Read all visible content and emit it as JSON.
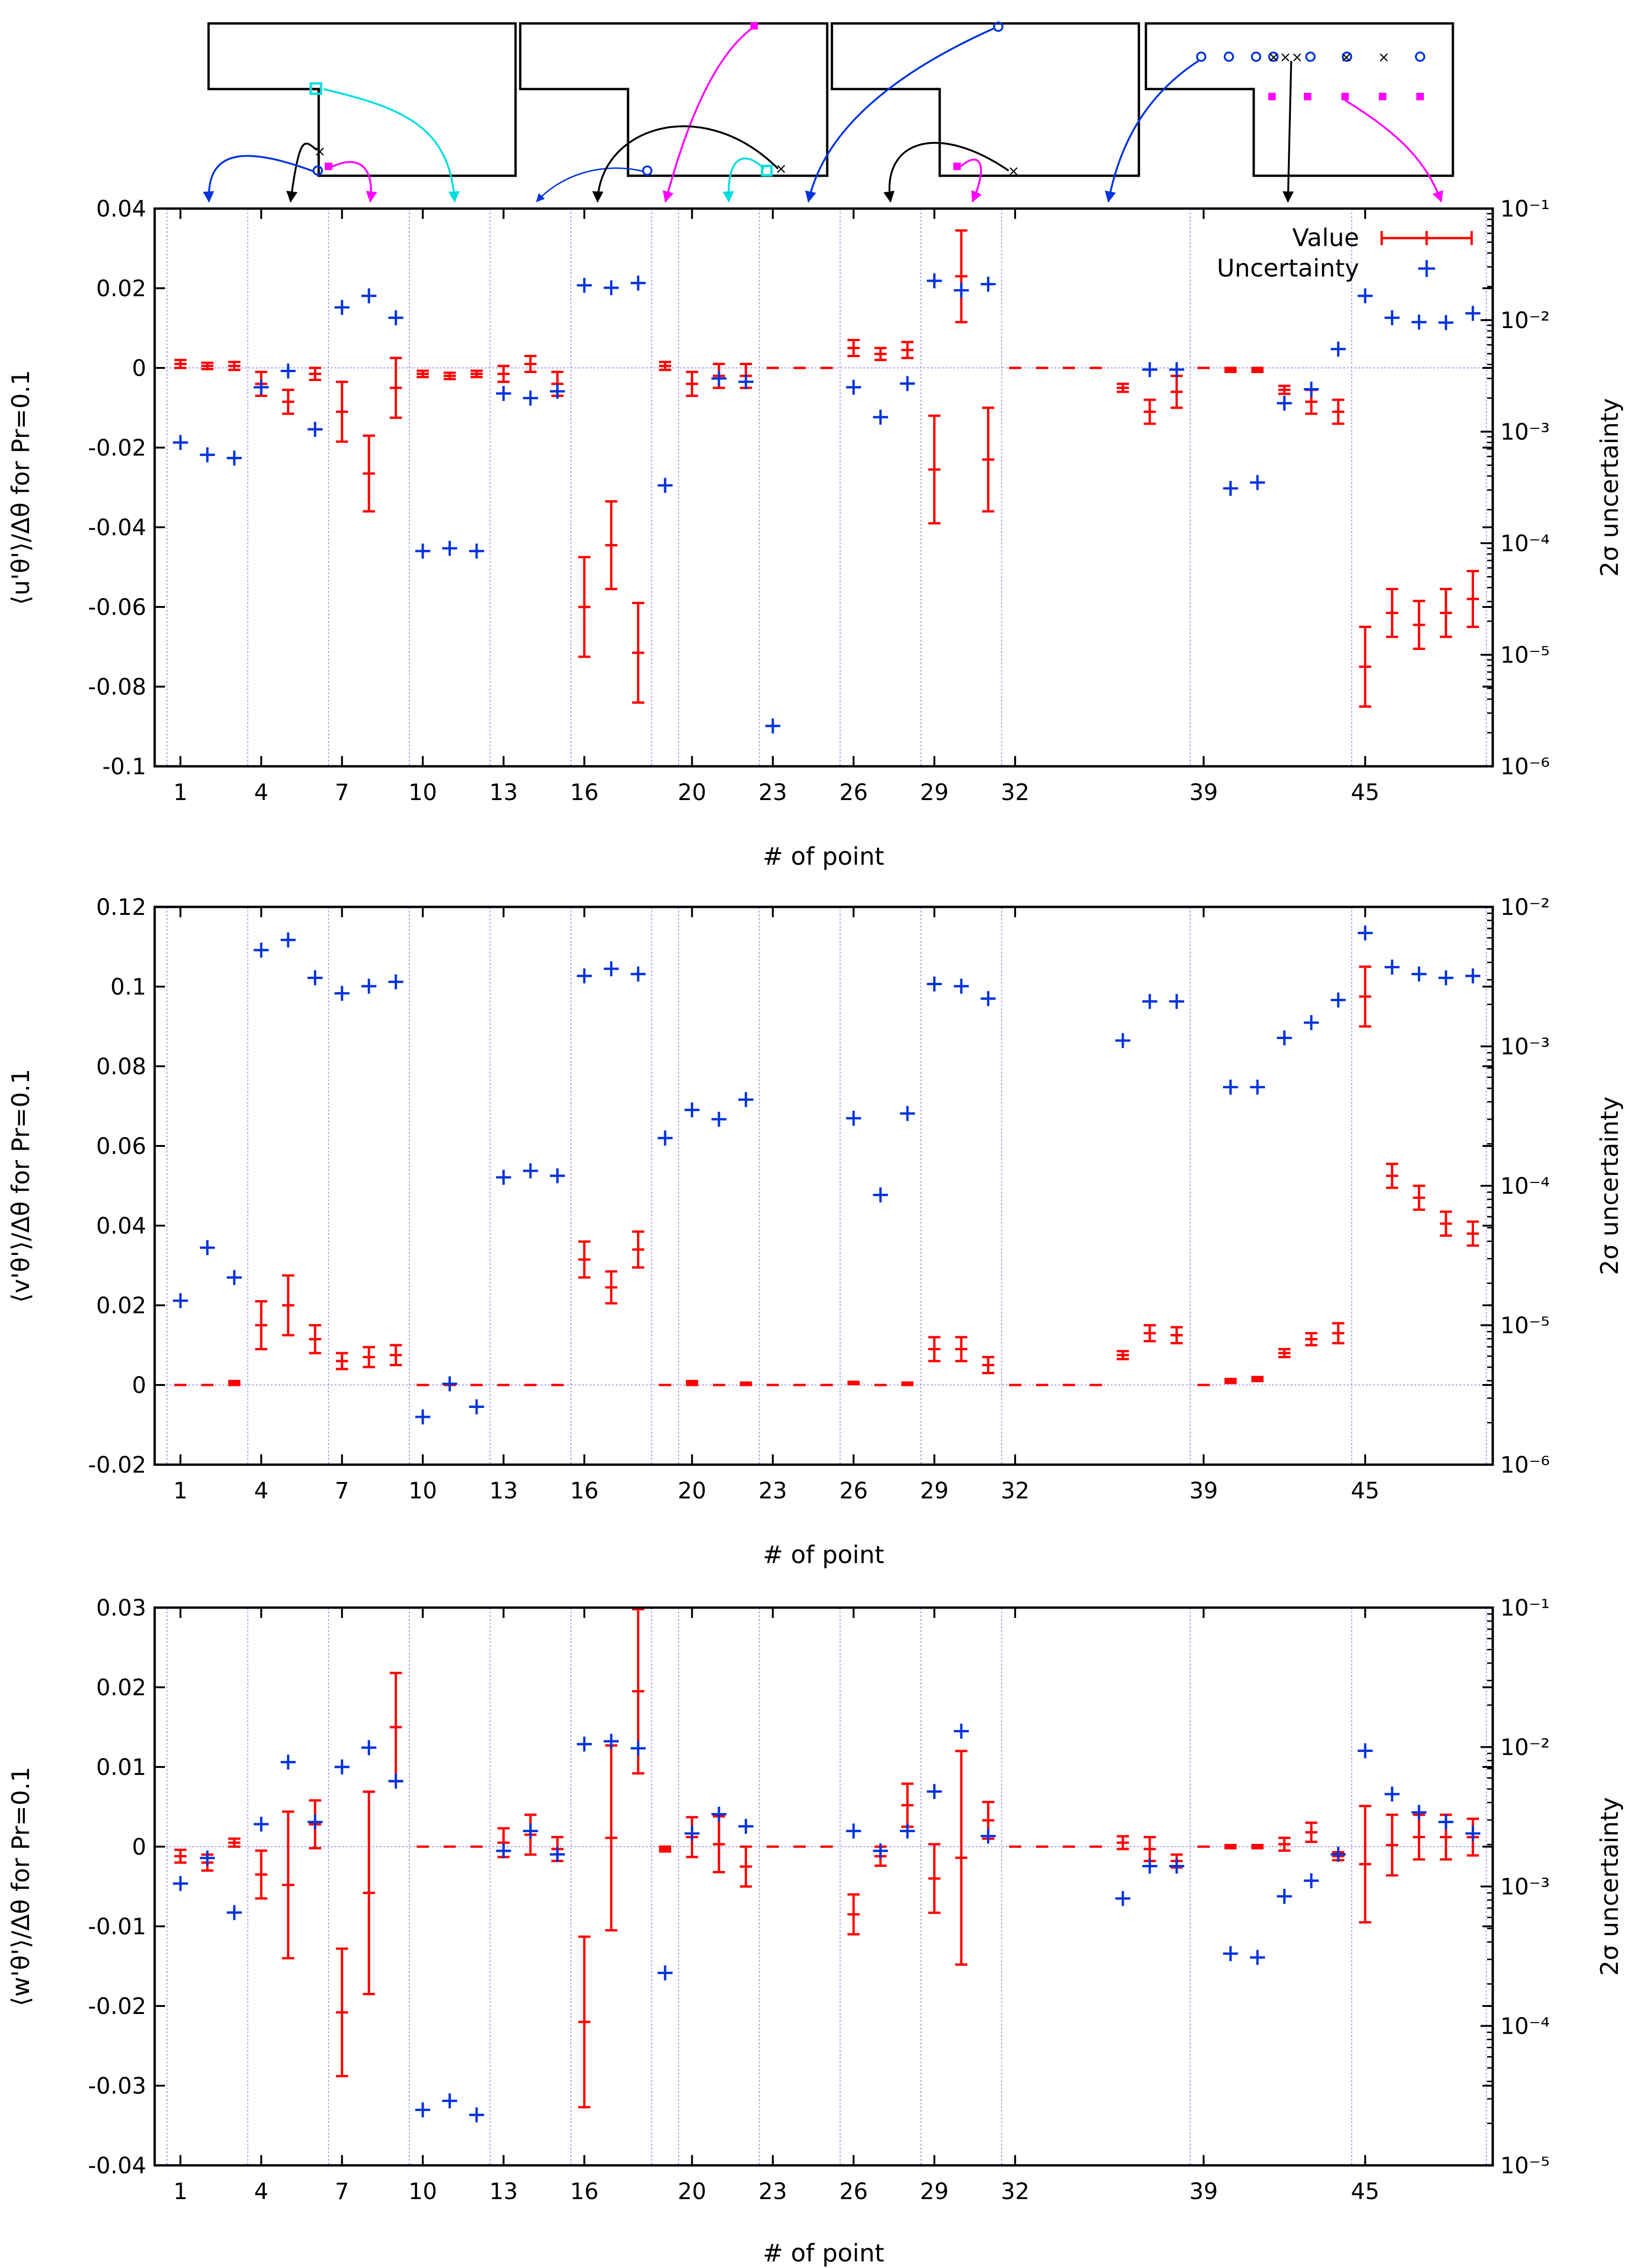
{
  "figure": {
    "x_axis_label": "# of point",
    "right_axis_label": "2σ uncertainty",
    "x_tick_labels": [
      "1",
      "4",
      "7",
      "10",
      "13",
      "16",
      "20",
      "23",
      "26",
      "29",
      "32",
      "39",
      "45"
    ],
    "legend": {
      "value_label": "Value",
      "uncertainty_label": "Uncertainty"
    },
    "colors": {
      "value": "#ff0000",
      "uncertainty": "#0033dd",
      "divider": "#9999ee",
      "cyan": "#00dddd",
      "magenta": "#ff00ff",
      "black": "#000000"
    }
  },
  "chart_data": [
    {
      "type": "scatter",
      "title": "",
      "xlabel": "# of point",
      "ylabel": "⟨u'θ'⟩/Δθ for Pr=0.1",
      "y2label": "2σ uncertainty",
      "ylim": [
        -0.1,
        0.04
      ],
      "yticks": [
        0.04,
        0.02,
        0,
        -0.02,
        -0.04,
        -0.06,
        -0.08,
        -0.1
      ],
      "ytick_labels": [
        "0.04",
        "0.02",
        "0",
        "-0.02",
        "-0.04",
        "-0.06",
        "-0.08",
        "-0.1"
      ],
      "y2_log_range": [
        -6,
        -1
      ],
      "y2_ticks": [
        "10⁻¹",
        "10⁻²",
        "10⁻³",
        "10⁻⁴",
        "10⁻⁵",
        "10⁻⁶"
      ],
      "value_series": [
        [
          1,
          0.001,
          0.001
        ],
        [
          2,
          0.0005,
          0.0008
        ],
        [
          3,
          0.0005,
          0.001
        ],
        [
          4,
          -0.004,
          0.003
        ],
        [
          5,
          -0.0085,
          0.003
        ],
        [
          6,
          -0.0015,
          0.0015
        ],
        [
          7,
          -0.011,
          0.0075
        ],
        [
          8,
          -0.0265,
          0.0095
        ],
        [
          9,
          -0.005,
          0.0075
        ],
        [
          10,
          -0.0015,
          0.0008
        ],
        [
          11,
          -0.002,
          0.0008
        ],
        [
          12,
          -0.0015,
          0.0008
        ],
        [
          13,
          -0.0015,
          0.002
        ],
        [
          14,
          0.001,
          0.002
        ],
        [
          15,
          -0.004,
          0.003
        ],
        [
          16,
          -0.06,
          0.0125
        ],
        [
          17,
          -0.0445,
          0.011
        ],
        [
          18,
          -0.0715,
          0.0125
        ],
        [
          19,
          0.0005,
          0.001
        ],
        [
          20,
          -0.004,
          0.003
        ],
        [
          21,
          -0.002,
          0.003
        ],
        [
          22,
          -0.002,
          0.003
        ],
        [
          23,
          0,
          0
        ],
        [
          24,
          0,
          0
        ],
        [
          25,
          0,
          0
        ],
        [
          26,
          0.005,
          0.002
        ],
        [
          27,
          0.0035,
          0.0015
        ],
        [
          28,
          0.0045,
          0.002
        ],
        [
          29,
          -0.0255,
          0.0135
        ],
        [
          30,
          0.023,
          0.0115
        ],
        [
          31,
          -0.023,
          0.013
        ],
        [
          32,
          0,
          0
        ],
        [
          33,
          0,
          0
        ],
        [
          34,
          0,
          0
        ],
        [
          35,
          0,
          0
        ],
        [
          36,
          -0.005,
          0.001
        ],
        [
          37,
          -0.011,
          0.003
        ],
        [
          38,
          -0.006,
          0.004
        ],
        [
          39,
          0,
          0
        ],
        [
          40,
          -0.0005,
          0.0005
        ],
        [
          41,
          -0.0005,
          0.0005
        ],
        [
          42,
          -0.0055,
          0.001
        ],
        [
          43,
          -0.0085,
          0.003
        ],
        [
          44,
          -0.011,
          0.003
        ],
        [
          45,
          -0.075,
          0.01
        ],
        [
          46,
          -0.0615,
          0.006
        ],
        [
          47,
          -0.0645,
          0.006
        ],
        [
          48,
          -0.0615,
          0.006
        ],
        [
          49,
          -0.058,
          0.007
        ]
      ],
      "uncertainty_series": [
        [
          1,
          0.0008
        ],
        [
          2,
          0.00062
        ],
        [
          3,
          0.00058
        ],
        [
          4,
          0.0025
        ],
        [
          5,
          0.0035
        ],
        [
          6,
          0.00105
        ],
        [
          7,
          0.013
        ],
        [
          8,
          0.0165
        ],
        [
          9,
          0.0105
        ],
        [
          10,
          8.5e-05
        ],
        [
          11,
          9e-05
        ],
        [
          12,
          8.5e-05
        ],
        [
          13,
          0.0022
        ],
        [
          14,
          0.002
        ],
        [
          15,
          0.0023
        ],
        [
          16,
          0.0205
        ],
        [
          17,
          0.0195
        ],
        [
          18,
          0.0215
        ],
        [
          19,
          0.00033
        ],
        [
          21,
          0.003
        ],
        [
          22,
          0.0028
        ],
        [
          23,
          2.3e-06
        ],
        [
          26,
          0.0025
        ],
        [
          27,
          0.00135
        ],
        [
          28,
          0.0027
        ],
        [
          29,
          0.0225
        ],
        [
          30,
          0.0185
        ],
        [
          31,
          0.021
        ],
        [
          37,
          0.0036
        ],
        [
          38,
          0.0036
        ],
        [
          40,
          0.00031
        ],
        [
          41,
          0.00035
        ],
        [
          42,
          0.0018
        ],
        [
          43,
          0.0024
        ],
        [
          44,
          0.0055
        ],
        [
          45,
          0.0165
        ],
        [
          46,
          0.0105
        ],
        [
          47,
          0.0096
        ],
        [
          48,
          0.0095
        ],
        [
          49,
          0.0115
        ]
      ]
    },
    {
      "type": "scatter",
      "title": "",
      "xlabel": "# of point",
      "ylabel": "⟨v'θ'⟩/Δθ for Pr=0.1",
      "y2label": "2σ uncertainty",
      "ylim": [
        -0.02,
        0.12
      ],
      "yticks": [
        0.12,
        0.1,
        0.08,
        0.06,
        0.04,
        0.02,
        0,
        -0.02
      ],
      "ytick_labels": [
        "0.12",
        "0.1",
        "0.08",
        "0.06",
        "0.04",
        "0.02",
        "0",
        "-0.02"
      ],
      "y2_log_range": [
        -6,
        -2
      ],
      "y2_ticks": [
        "10⁻²",
        "10⁻³",
        "10⁻⁴",
        "10⁻⁵",
        "10⁻⁶"
      ],
      "value_series": [
        [
          1,
          0,
          0
        ],
        [
          2,
          0,
          0
        ],
        [
          3,
          0.0005,
          0.0005
        ],
        [
          4,
          0.015,
          0.006
        ],
        [
          5,
          0.02,
          0.0075
        ],
        [
          6,
          0.0115,
          0.0035
        ],
        [
          7,
          0.006,
          0.002
        ],
        [
          8,
          0.007,
          0.0025
        ],
        [
          9,
          0.0075,
          0.0025
        ],
        [
          10,
          0,
          0
        ],
        [
          11,
          0,
          0
        ],
        [
          12,
          0,
          0
        ],
        [
          13,
          0,
          0
        ],
        [
          14,
          0,
          0
        ],
        [
          15,
          0,
          0
        ],
        [
          16,
          0.0315,
          0.0045
        ],
        [
          17,
          0.0245,
          0.004
        ],
        [
          18,
          0.034,
          0.0045
        ],
        [
          19,
          0,
          0
        ],
        [
          20,
          0.0005,
          0.0005
        ],
        [
          21,
          0,
          0
        ],
        [
          22,
          0.0003,
          0.0003
        ],
        [
          23,
          0,
          0
        ],
        [
          24,
          0,
          0
        ],
        [
          25,
          0,
          0
        ],
        [
          26,
          0.0005,
          0.0003
        ],
        [
          27,
          0,
          0
        ],
        [
          28,
          0.0003,
          0.0003
        ],
        [
          29,
          0.009,
          0.003
        ],
        [
          30,
          0.009,
          0.003
        ],
        [
          31,
          0.005,
          0.002
        ],
        [
          32,
          0,
          0
        ],
        [
          33,
          0,
          0
        ],
        [
          34,
          0,
          0
        ],
        [
          35,
          0,
          0
        ],
        [
          36,
          0.0075,
          0.001
        ],
        [
          37,
          0.013,
          0.002
        ],
        [
          38,
          0.0125,
          0.002
        ],
        [
          39,
          0,
          0
        ],
        [
          40,
          0.001,
          0.0005
        ],
        [
          41,
          0.0015,
          0.0005
        ],
        [
          42,
          0.008,
          0.001
        ],
        [
          43,
          0.0115,
          0.0015
        ],
        [
          44,
          0.013,
          0.0025
        ],
        [
          45,
          0.0975,
          0.0075
        ],
        [
          46,
          0.0525,
          0.003
        ],
        [
          47,
          0.047,
          0.003
        ],
        [
          48,
          0.0405,
          0.003
        ],
        [
          49,
          0.038,
          0.003
        ]
      ],
      "uncertainty_series": [
        [
          1,
          1.5e-05
        ],
        [
          2,
          3.6e-05
        ],
        [
          3,
          2.2e-05
        ],
        [
          4,
          0.0049
        ],
        [
          5,
          0.0058
        ],
        [
          6,
          0.0031
        ],
        [
          7,
          0.0024
        ],
        [
          8,
          0.0027
        ],
        [
          9,
          0.0029
        ],
        [
          10,
          2.2e-06
        ],
        [
          11,
          3.8e-06
        ],
        [
          12,
          2.6e-06
        ],
        [
          13,
          0.000115
        ],
        [
          14,
          0.000128
        ],
        [
          15,
          0.000118
        ],
        [
          16,
          0.0032
        ],
        [
          17,
          0.0036
        ],
        [
          18,
          0.0033
        ],
        [
          19,
          0.00022
        ],
        [
          20,
          0.00035
        ],
        [
          21,
          0.0003
        ],
        [
          22,
          0.000415
        ],
        [
          26,
          0.000305
        ],
        [
          27,
          8.6e-05
        ],
        [
          28,
          0.00033
        ],
        [
          29,
          0.0028
        ],
        [
          30,
          0.0027
        ],
        [
          31,
          0.0022
        ],
        [
          36,
          0.0011
        ],
        [
          37,
          0.0021
        ],
        [
          38,
          0.0021
        ],
        [
          40,
          0.00051
        ],
        [
          41,
          0.00051
        ],
        [
          42,
          0.00115
        ],
        [
          43,
          0.00148
        ],
        [
          44,
          0.00215
        ],
        [
          45,
          0.0065
        ],
        [
          46,
          0.0037
        ],
        [
          47,
          0.0033
        ],
        [
          48,
          0.0031
        ],
        [
          49,
          0.0032
        ]
      ]
    },
    {
      "type": "scatter",
      "title": "",
      "xlabel": "# of point",
      "ylabel": "⟨w'θ'⟩/Δθ for Pr=0.1",
      "y2label": "2σ uncertainty",
      "ylim": [
        -0.04,
        0.03
      ],
      "yticks": [
        0.03,
        0.02,
        0.01,
        0,
        -0.01,
        -0.02,
        -0.03,
        -0.04
      ],
      "ytick_labels": [
        "0.03",
        "0.02",
        "0.01",
        "0",
        "-0.01",
        "-0.02",
        "-0.03",
        "-0.04"
      ],
      "y2_log_range": [
        -5,
        -1
      ],
      "y2_ticks": [
        "10⁻¹",
        "10⁻²",
        "10⁻³",
        "10⁻⁴",
        "10⁻⁵"
      ],
      "value_series": [
        [
          1,
          -0.0012,
          0.0008
        ],
        [
          2,
          -0.002,
          0.001
        ],
        [
          3,
          0.0005,
          0.0005
        ],
        [
          4,
          -0.0035,
          0.003
        ],
        [
          5,
          -0.0048,
          0.0092
        ],
        [
          6,
          0.0028,
          0.003
        ],
        [
          7,
          -0.0208,
          0.008
        ],
        [
          8,
          -0.0058,
          0.0127
        ],
        [
          9,
          0.015,
          0.0068
        ],
        [
          10,
          0,
          0
        ],
        [
          11,
          0,
          0
        ],
        [
          12,
          0,
          0
        ],
        [
          13,
          0.0005,
          0.0018
        ],
        [
          14,
          0.0015,
          0.0025
        ],
        [
          15,
          -0.0003,
          0.0015
        ],
        [
          16,
          -0.022,
          0.0107
        ],
        [
          17,
          0.0011,
          0.0116
        ],
        [
          18,
          0.0195,
          0.0103
        ],
        [
          19,
          -0.0003,
          0.0003
        ],
        [
          20,
          0.0012,
          0.0025
        ],
        [
          21,
          0.0003,
          0.0035
        ],
        [
          22,
          -0.0025,
          0.0025
        ],
        [
          23,
          0,
          0
        ],
        [
          24,
          0,
          0
        ],
        [
          25,
          0,
          0
        ],
        [
          26,
          -0.0085,
          0.0025
        ],
        [
          27,
          -0.0012,
          0.0012
        ],
        [
          28,
          0.0052,
          0.0027
        ],
        [
          29,
          -0.004,
          0.0043
        ],
        [
          30,
          -0.0014,
          0.0134
        ],
        [
          31,
          0.0033,
          0.0023
        ],
        [
          32,
          0,
          0
        ],
        [
          33,
          0,
          0
        ],
        [
          34,
          0,
          0
        ],
        [
          35,
          0,
          0
        ],
        [
          36,
          0.0005,
          0.0008
        ],
        [
          37,
          -0.0003,
          0.0015
        ],
        [
          38,
          -0.0018,
          0.0008
        ],
        [
          39,
          0,
          0
        ],
        [
          40,
          0,
          0.0002
        ],
        [
          41,
          0,
          0.0002
        ],
        [
          42,
          0.0003,
          0.0008
        ],
        [
          43,
          0.0018,
          0.0012
        ],
        [
          44,
          -0.0012,
          0.0005
        ],
        [
          45,
          -0.0022,
          0.0073
        ],
        [
          46,
          0.0002,
          0.0038
        ],
        [
          47,
          0.0012,
          0.0028
        ],
        [
          48,
          0.0012,
          0.0028
        ],
        [
          49,
          0.0012,
          0.0023
        ]
      ],
      "uncertainty_series": [
        [
          1,
          0.00105
        ],
        [
          2,
          0.0016
        ],
        [
          3,
          0.00065
        ],
        [
          4,
          0.0028
        ],
        [
          5,
          0.0078
        ],
        [
          6,
          0.0029
        ],
        [
          7,
          0.0072
        ],
        [
          8,
          0.0099
        ],
        [
          9,
          0.0057
        ],
        [
          10,
          2.5e-05
        ],
        [
          11,
          2.9e-05
        ],
        [
          12,
          2.3e-05
        ],
        [
          13,
          0.0018
        ],
        [
          14,
          0.0025
        ],
        [
          15,
          0.0017
        ],
        [
          16,
          0.0105
        ],
        [
          17,
          0.011
        ],
        [
          18,
          0.0098
        ],
        [
          19,
          0.00024
        ],
        [
          20,
          0.0024
        ],
        [
          21,
          0.0033
        ],
        [
          22,
          0.0027
        ],
        [
          26,
          0.0025
        ],
        [
          27,
          0.0018
        ],
        [
          28,
          0.0025
        ],
        [
          29,
          0.0048
        ],
        [
          30,
          0.013
        ],
        [
          31,
          0.0023
        ],
        [
          36,
          0.00082
        ],
        [
          37,
          0.0014
        ],
        [
          38,
          0.0014
        ],
        [
          40,
          0.00033
        ],
        [
          41,
          0.00031
        ],
        [
          42,
          0.00085
        ],
        [
          43,
          0.0011
        ],
        [
          44,
          0.0017
        ],
        [
          45,
          0.0094
        ],
        [
          46,
          0.0046
        ],
        [
          47,
          0.0034
        ],
        [
          48,
          0.0029
        ],
        [
          49,
          0.0024
        ]
      ]
    }
  ]
}
